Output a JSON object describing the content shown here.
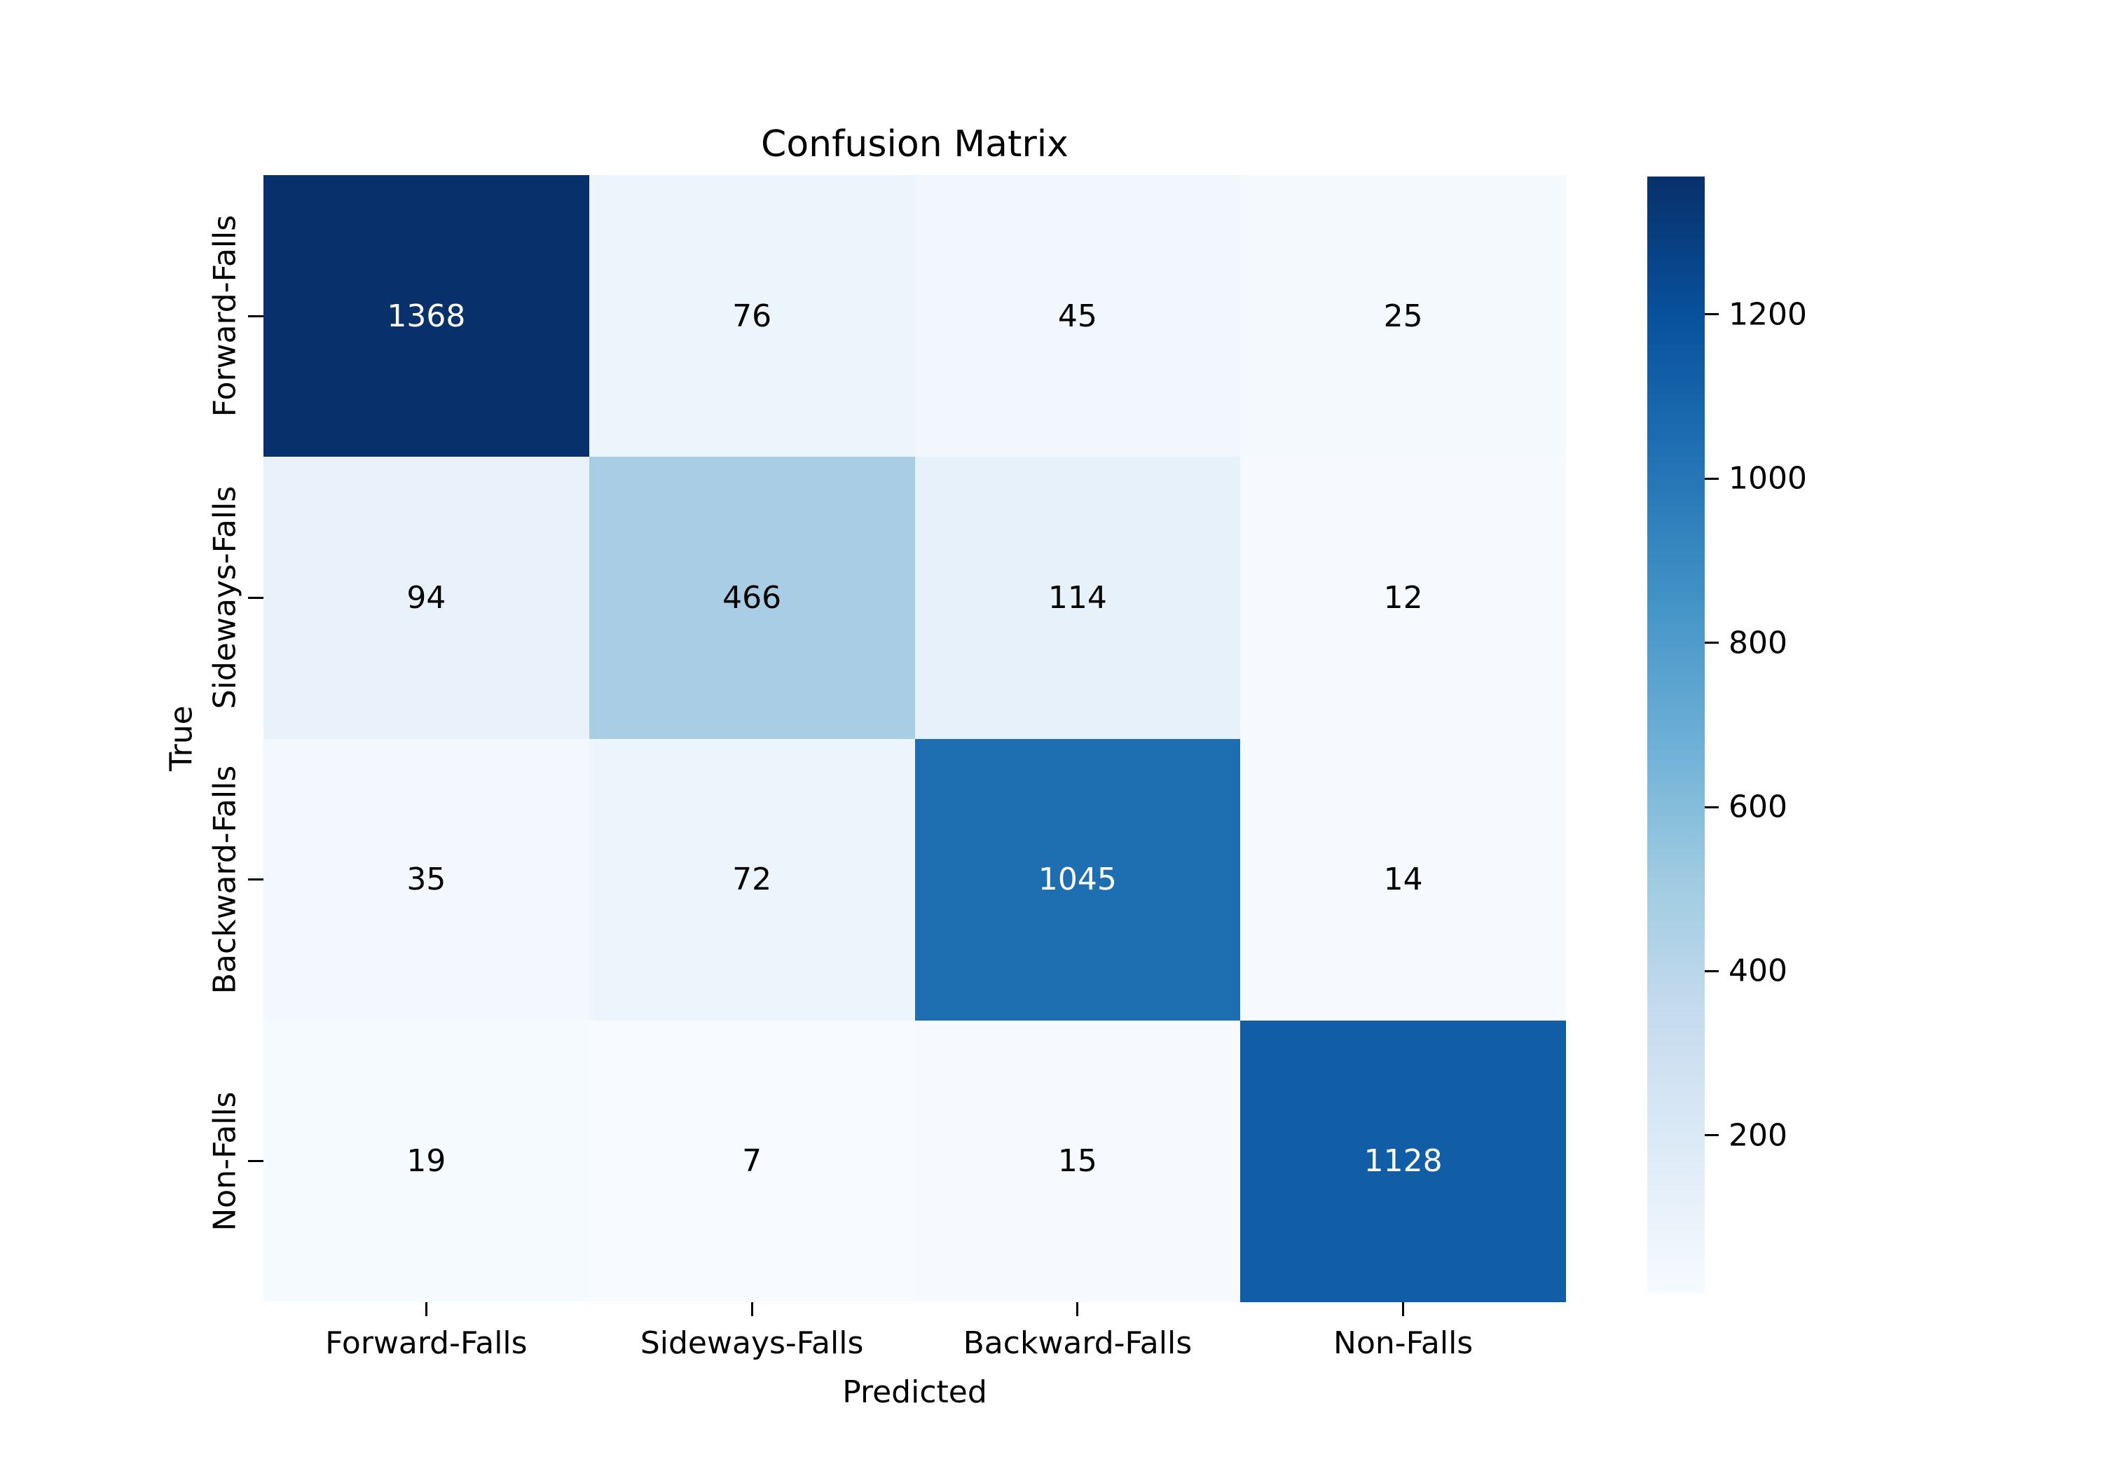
{
  "title": "Confusion Matrix",
  "x_axis": {
    "label": "Predicted",
    "ticks": [
      "Forward-Falls",
      "Sideways-Falls",
      "Backward-Falls",
      "Non-Falls"
    ]
  },
  "y_axis": {
    "label": "True",
    "ticks": [
      "Forward-Falls",
      "Sideways-Falls",
      "Backward-Falls",
      "Non-Falls"
    ]
  },
  "colorbar": {
    "vmin": 7,
    "vmax": 1368,
    "tick_values": [
      1200,
      1000,
      800,
      600,
      400,
      200
    ],
    "color_top": "#08306b",
    "color_bottom": "#f7fbff"
  },
  "chart_data": {
    "type": "heatmap",
    "title": "Confusion Matrix",
    "xlabel": "Predicted",
    "ylabel": "True",
    "colormap": "Blues",
    "categories": [
      "Forward-Falls",
      "Sideways-Falls",
      "Backward-Falls",
      "Non-Falls"
    ],
    "matrix": [
      [
        1368,
        76,
        45,
        25
      ],
      [
        94,
        466,
        114,
        12
      ],
      [
        35,
        72,
        1045,
        14
      ],
      [
        19,
        7,
        15,
        1128
      ]
    ],
    "cell_colors": [
      [
        "#08306b",
        "#edf5fc",
        "#f1f7fd",
        "#f4f9fe"
      ],
      [
        "#e9f1fa",
        "#a9cde4",
        "#e7f1fa",
        "#f6fafe"
      ],
      [
        "#f3f8fe",
        "#edf5fc",
        "#1e6eb2",
        "#f6fafe"
      ],
      [
        "#f5fafe",
        "#f7fbff",
        "#f6fafe",
        "#125ea6"
      ]
    ],
    "annotation_colors": {
      "dark_cell_text": "#ffffff",
      "light_cell_text": "#000000"
    },
    "legend_position": "right-colorbar",
    "grid": false
  }
}
